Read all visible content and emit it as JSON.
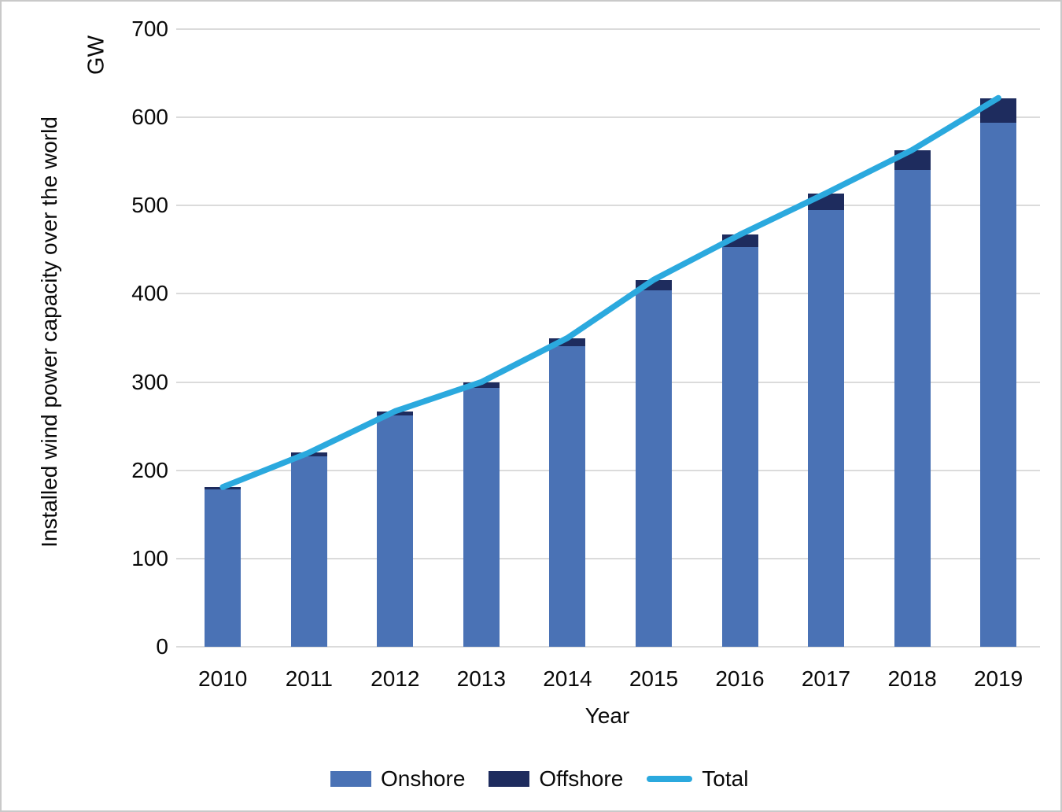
{
  "figure": {
    "background_color": "#ffffff",
    "border_color": "#c9c9c9",
    "gridline_color": "#dbdbdb",
    "text_color": "#0a0a0a"
  },
  "chart_data": {
    "type": "bar",
    "subtype": "stacked-bars-with-total-line",
    "title": "",
    "categories": [
      "2010",
      "2011",
      "2012",
      "2013",
      "2014",
      "2015",
      "2016",
      "2017",
      "2018",
      "2019"
    ],
    "series": [
      {
        "name": "Onshore",
        "render": "bar",
        "color": "#4a72b5",
        "values": [
          178,
          216,
          262,
          293,
          341,
          404,
          453,
          495,
          540,
          594
        ]
      },
      {
        "name": "Offshore",
        "render": "bar",
        "color": "#1e2c5e",
        "values": [
          3,
          4,
          5,
          7,
          9,
          12,
          14,
          19,
          23,
          28
        ]
      },
      {
        "name": "Total",
        "render": "line",
        "color": "#2ba9de",
        "values": [
          181,
          220,
          267,
          300,
          350,
          416,
          467,
          514,
          563,
          622
        ]
      }
    ],
    "xlabel": "Year",
    "ylabel": "Installed wind power capacity over the world",
    "y_unit_label": "GW",
    "ylim": [
      0,
      700
    ],
    "yticks": [
      0,
      100,
      200,
      300,
      400,
      500,
      600,
      700
    ],
    "grid": true,
    "legend_position": "bottom"
  }
}
